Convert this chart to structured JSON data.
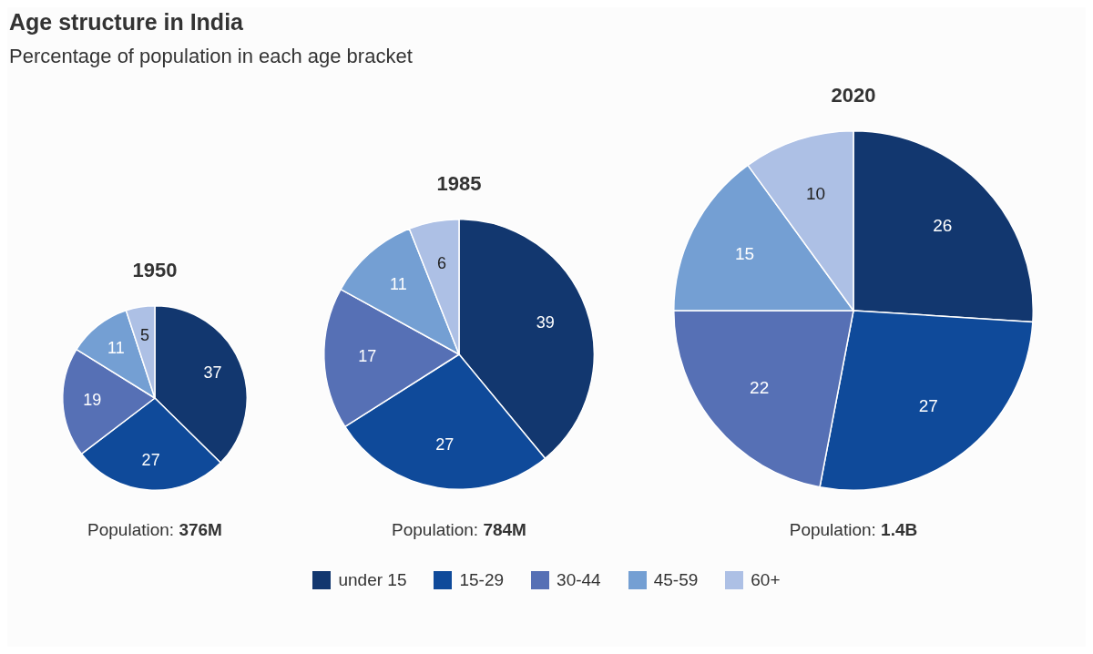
{
  "chart_data": [
    {
      "type": "other",
      "title": "Age structure in India",
      "subtitle": "Percentage of population in each age bracket"
    },
    {
      "type": "pie",
      "title": "1950",
      "categories": [
        "under 15",
        "15-29",
        "30-44",
        "45-59",
        "60+"
      ],
      "values": [
        37,
        27,
        19,
        11,
        5
      ],
      "colors": [
        "#12376f",
        "#0f4a9a",
        "#5670b5",
        "#749fd3",
        "#adc0e5"
      ],
      "data_labels": true,
      "annotations": [
        "Population: 376M"
      ],
      "legend": "bottom"
    },
    {
      "type": "pie",
      "title": "1985",
      "categories": [
        null,
        null,
        null,
        null,
        null
      ],
      "values": [
        39,
        27,
        17,
        11,
        6
      ],
      "colors": [
        "#12376f",
        "#0f4a9a",
        "#5670b5",
        "#749fd3",
        "#adc0e5"
      ],
      "data_labels": true,
      "annotations": [
        "Population: 784M"
      ]
    },
    {
      "type": "pie",
      "title": "2020",
      "categories": [
        null,
        null,
        null,
        null,
        null
      ],
      "values": [
        26,
        27,
        22,
        15,
        10
      ],
      "colors": [
        "#12376f",
        "#0f4a9a",
        "#5670b5",
        "#749fd3",
        "#adc0e5"
      ],
      "data_labels": true,
      "annotations": [
        "Population: 1.4B"
      ]
    }
  ]
}
